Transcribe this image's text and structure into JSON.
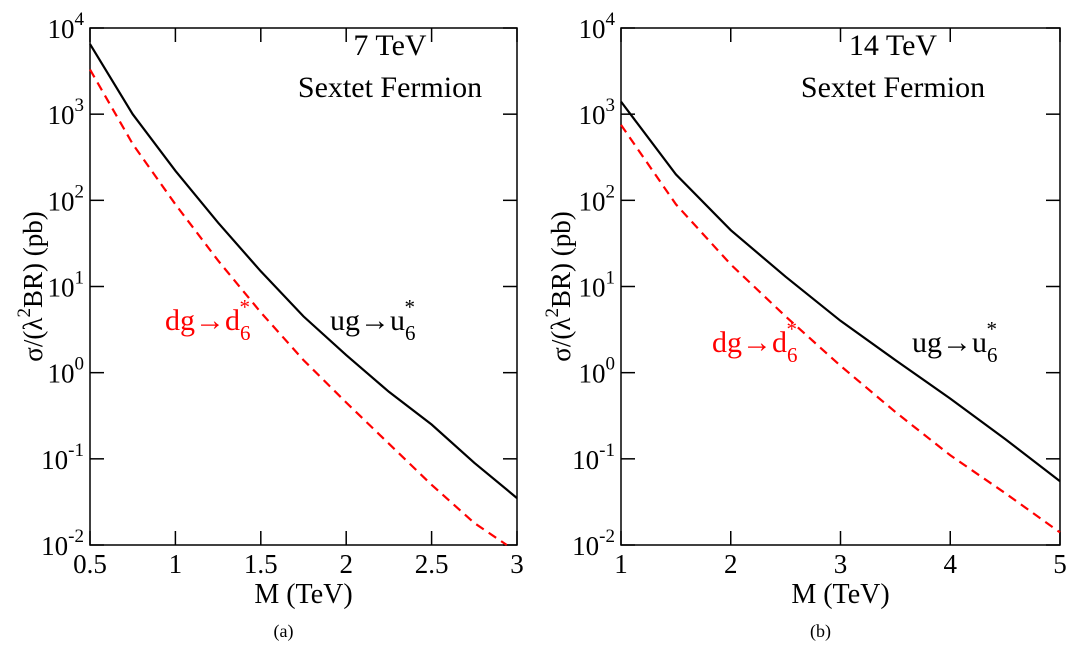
{
  "chart_data": [
    {
      "type": "line",
      "caption": "(a)",
      "xlabel": "M (TeV)",
      "ylabel": {
        "before": "σ/(λ",
        "superscript": "2",
        "after": "BR) (pb)"
      },
      "annotations": [
        {
          "text": "7 TeV"
        },
        {
          "text": "Sextet Fermion"
        },
        {
          "text": "dg→d",
          "subscript": "6",
          "superscript": "*",
          "series": 1
        },
        {
          "text": "ug→u",
          "subscript": "6",
          "superscript": "*",
          "series": 0
        }
      ],
      "log_y": true,
      "xlim": [
        0.5,
        3
      ],
      "ylim": [
        0.01,
        10000
      ],
      "xticks": [
        0.5,
        1,
        1.5,
        2,
        2.5,
        3
      ],
      "yticks": [
        {
          "value": 0.01,
          "label": "10",
          "superscript": "-2"
        },
        {
          "value": 0.1,
          "label": "10",
          "superscript": "-1"
        },
        {
          "value": 1,
          "label": "10",
          "superscript": "0"
        },
        {
          "value": 10,
          "label": "10",
          "superscript": "1"
        },
        {
          "value": 100,
          "label": "10",
          "superscript": "2"
        },
        {
          "value": 1000,
          "label": "10",
          "superscript": "3"
        },
        {
          "value": 10000,
          "label": "10",
          "superscript": "4"
        }
      ],
      "series": [
        {
          "color": "#000000",
          "dash": "solid",
          "x": [
            0.5,
            0.75,
            1.0,
            1.25,
            1.5,
            1.75,
            2.0,
            2.25,
            2.5,
            2.75,
            3.0
          ],
          "values": [
            6500,
            1000,
            220,
            55,
            15,
            4.5,
            1.6,
            0.6,
            0.25,
            0.09,
            0.035
          ]
        },
        {
          "color": "#ff0000",
          "dash": "dashed",
          "x": [
            0.5,
            0.75,
            1.0,
            1.25,
            1.5,
            1.75,
            2.0,
            2.25,
            2.5,
            2.75,
            2.94
          ],
          "values": [
            3300,
            450,
            90,
            20,
            5,
            1.4,
            0.45,
            0.15,
            0.05,
            0.018,
            0.01
          ]
        }
      ]
    },
    {
      "type": "line",
      "caption": "(b)",
      "xlabel": "M (TeV)",
      "ylabel": {
        "before": "σ/(λ",
        "superscript": "2",
        "after": "BR) (pb)"
      },
      "annotations": [
        {
          "text": "14 TeV"
        },
        {
          "text": "Sextet Fermion"
        },
        {
          "text": "dg→d",
          "subscript": "6",
          "superscript": "*",
          "series": 1
        },
        {
          "text": "ug→u",
          "subscript": "6",
          "superscript": "*",
          "series": 0
        }
      ],
      "log_y": true,
      "xlim": [
        1,
        5
      ],
      "ylim": [
        0.01,
        10000
      ],
      "xticks": [
        1,
        2,
        3,
        4,
        5
      ],
      "yticks": [
        {
          "value": 0.01,
          "label": "10",
          "superscript": "-2"
        },
        {
          "value": 0.1,
          "label": "10",
          "superscript": "-1"
        },
        {
          "value": 1,
          "label": "10",
          "superscript": "0"
        },
        {
          "value": 10,
          "label": "10",
          "superscript": "1"
        },
        {
          "value": 100,
          "label": "10",
          "superscript": "2"
        },
        {
          "value": 1000,
          "label": "10",
          "superscript": "3"
        },
        {
          "value": 10000,
          "label": "10",
          "superscript": "4"
        }
      ],
      "series": [
        {
          "color": "#000000",
          "dash": "solid",
          "x": [
            1,
            1.5,
            2,
            2.5,
            3,
            3.5,
            4,
            4.5,
            5
          ],
          "values": [
            1400,
            200,
            45,
            13,
            4,
            1.4,
            0.5,
            0.17,
            0.055
          ]
        },
        {
          "color": "#ff0000",
          "dash": "dashed",
          "x": [
            1,
            1.5,
            2,
            2.5,
            3,
            3.5,
            4,
            4.5,
            5
          ],
          "values": [
            750,
            90,
            18,
            4.5,
            1.2,
            0.35,
            0.11,
            0.04,
            0.014
          ]
        }
      ]
    }
  ]
}
